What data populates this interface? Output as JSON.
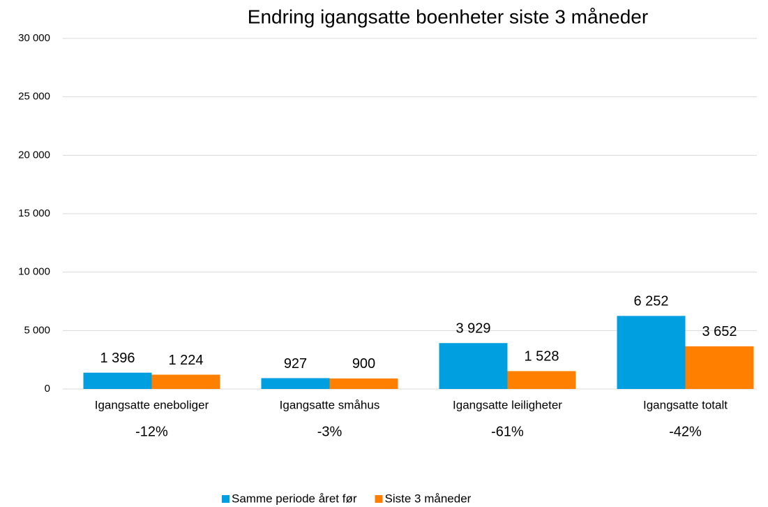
{
  "chart_data": {
    "type": "bar",
    "title": "Endring igangsatte boenheter siste 3 måneder",
    "categories": [
      "Igangsatte eneboliger",
      "Igangsatte småhus",
      "Igangsatte leiligheter",
      "Igangsatte totalt"
    ],
    "annotations": [
      "-12%",
      "-3%",
      "-61%",
      "-42%"
    ],
    "series": [
      {
        "name": "Samme periode året før",
        "color": "#00a0e0",
        "values": [
          1396,
          927,
          3929,
          6252
        ],
        "value_labels": [
          "1 396",
          "927",
          "3 929",
          "6 252"
        ]
      },
      {
        "name": "Siste 3 måneder",
        "color": "#ff8000",
        "values": [
          1224,
          900,
          1528,
          3652
        ],
        "value_labels": [
          "1 224",
          "900",
          "1 528",
          "3 652"
        ]
      }
    ],
    "ylim": [
      0,
      30000
    ],
    "yticks": [
      0,
      {
        "value": 5000,
        "label": "5 000"
      },
      {
        "value": 10000,
        "label": "10 000"
      },
      {
        "value": 15000,
        "label": "15 000"
      },
      {
        "value": 20000,
        "label": "20 000"
      },
      {
        "value": 25000,
        "label": "25 000"
      },
      {
        "value": 30000,
        "label": "30 000"
      }
    ],
    "grid": true
  }
}
